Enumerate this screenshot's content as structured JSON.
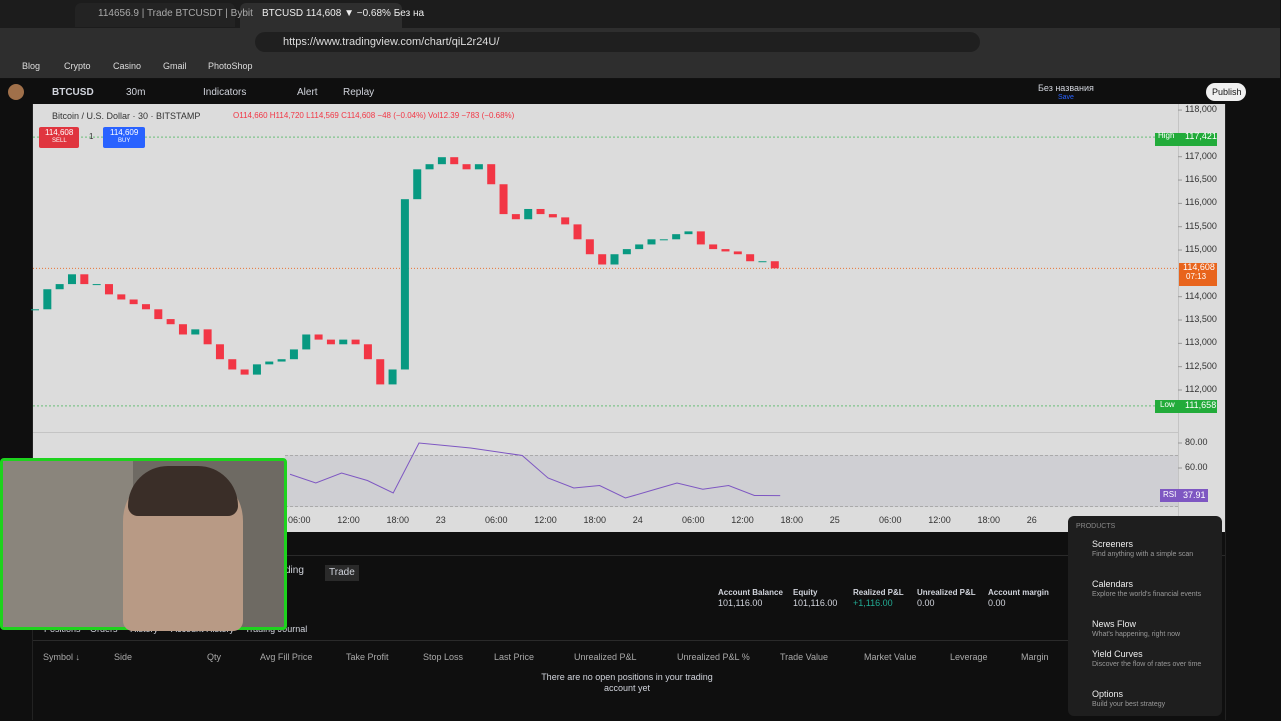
{
  "browser": {
    "tabs": [
      "114656.9 | Trade BTCUSDT | Bybit",
      "BTCUSD 114,608 ▼ −0.68% Без на"
    ],
    "url": "https://www.tradingview.com/chart/qiL2r24U/",
    "bookmarks": [
      "Blog",
      "Crypto",
      "Casino",
      "Gmail",
      "PhotoShop"
    ]
  },
  "toolbar": {
    "symbol": "BTCUSD",
    "interval": "30m",
    "items": [
      "Indicators",
      "Alert",
      "Replay"
    ],
    "layout_name": "Без названия",
    "layout_status": "Save",
    "publish": "Publish"
  },
  "legend": {
    "title": "Bitcoin / U.S. Dollar · 30 · BITSTAMP",
    "ohlc": "O114,660 H114,720 L114,569 C114,608 −48 (−0.04%)",
    "volume": "Vol12.39 −783 (−0.68%)",
    "sell_price": "114,608",
    "sell": "SELL",
    "spread": "1",
    "buy_price": "114,609",
    "buy": "BUY"
  },
  "chart_data": {
    "type": "candlestick",
    "up_color": "#089981",
    "down_color": "#f23645",
    "closes": [
      113730,
      114160,
      114270,
      114480,
      114270,
      114270,
      114050,
      113940,
      113840,
      113730,
      113520,
      113410,
      113190,
      113300,
      112980,
      112660,
      112440,
      112330,
      112550,
      112610,
      112660,
      112870,
      113190,
      113080,
      112980,
      113080,
      112980,
      112660,
      112120,
      112440,
      116090,
      116730,
      116840,
      116990,
      116840,
      116730,
      116840,
      116410,
      115770,
      115660,
      115880,
      115770,
      115700,
      115550,
      115230,
      114910,
      114690,
      114910,
      115020,
      115120,
      115230,
      115230,
      115340,
      115400,
      115120,
      115020,
      114970,
      114910,
      114760,
      114760,
      114608
    ],
    "ylim": [
      111100,
      118130
    ],
    "yticks": [
      {
        "value": 118000,
        "label": "118,000"
      },
      {
        "value": 117000,
        "label": "117,000"
      },
      {
        "value": 116500,
        "label": "116,500"
      },
      {
        "value": 116000,
        "label": "116,000"
      },
      {
        "value": 115500,
        "label": "115,500"
      },
      {
        "value": 115000,
        "label": "115,000"
      },
      {
        "value": 114000,
        "label": "114,000"
      },
      {
        "value": 113500,
        "label": "113,500"
      },
      {
        "value": 113000,
        "label": "113,000"
      },
      {
        "value": 112500,
        "label": "112,500"
      },
      {
        "value": 112000,
        "label": "112,000"
      }
    ],
    "x_labels": [
      "06:00",
      "12:00",
      "18:00",
      "23",
      "06:00",
      "12:00",
      "18:00",
      "24",
      "06:00",
      "12:00",
      "18:00",
      "25",
      "06:00",
      "12:00",
      "18:00",
      "26"
    ],
    "high": {
      "name": "High",
      "value": 117421,
      "label": "117,421"
    },
    "low": {
      "name": "Low",
      "value": 111658,
      "label": "111,658"
    },
    "last": {
      "value": 114608,
      "label": "114,608",
      "countdown": "07:13"
    },
    "rsi": {
      "name": "RSI",
      "color": "#7e57c2",
      "values": [
        55,
        48,
        56,
        50,
        40,
        80,
        78,
        76,
        73,
        70,
        52,
        44,
        46,
        36,
        42,
        48,
        43,
        46,
        38,
        37.91
      ],
      "value_label": "37.91",
      "ylim": [
        26.4,
        88.8
      ],
      "yticks": [
        {
          "value": 80,
          "label": "80.00"
        },
        {
          "value": 60,
          "label": "60.00"
        }
      ]
    }
  },
  "panel": {
    "tabs": [
      "ding",
      "Trade"
    ],
    "subtabs": [
      "Positions",
      "Orders",
      "History",
      "Account History",
      "Trading Journal"
    ],
    "stats": [
      {
        "label": "Account Balance",
        "value": "101,116.00"
      },
      {
        "label": "Equity",
        "value": "101,116.00"
      },
      {
        "label": "Realized P&L",
        "value": "+1,116.00"
      },
      {
        "label": "Unrealized P&L",
        "value": "0.00"
      },
      {
        "label": "Account margin",
        "value": "0.00"
      }
    ],
    "columns": [
      "Symbol ↓",
      "Side",
      "Qty",
      "Avg Fill Price",
      "Take Profit",
      "Stop Loss",
      "Last Price",
      "Unrealized P&L",
      "Unrealized P&L %",
      "Trade Value",
      "Market Value",
      "Leverage",
      "Margin"
    ],
    "empty": "There are no open positions in your trading account yet"
  },
  "products_menu": {
    "heading": "PRODUCTS",
    "items": [
      {
        "title": "Screeners",
        "desc": "Find anything with a simple scan"
      },
      {
        "title": "Calendars",
        "desc": "Explore the world's financial events"
      },
      {
        "title": "News Flow",
        "desc": "What's happening, right now"
      },
      {
        "title": "Yield Curves",
        "desc": "Discover the flow of rates over time"
      },
      {
        "title": "Options",
        "desc": "Build your best strategy"
      }
    ]
  }
}
